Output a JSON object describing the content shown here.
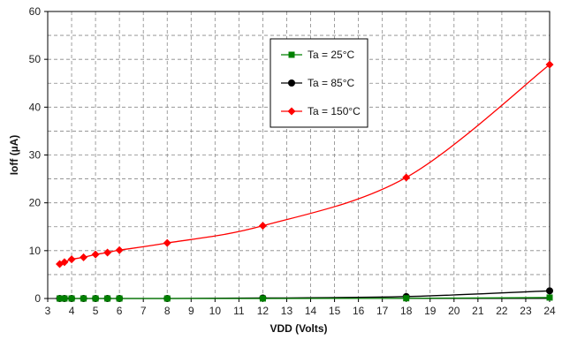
{
  "chart_data": {
    "type": "line",
    "xlabel": "VDD (Volts)",
    "ylabel": "Ioff (µA)",
    "xlim": [
      3,
      24
    ],
    "ylim": [
      0,
      60
    ],
    "x_ticks": [
      3,
      4,
      5,
      6,
      7,
      8,
      9,
      10,
      11,
      12,
      13,
      14,
      15,
      16,
      17,
      18,
      19,
      20,
      21,
      22,
      23,
      24
    ],
    "y_ticks": [
      0,
      10,
      20,
      30,
      40,
      50,
      60
    ],
    "grid": "dashed, major and minor",
    "legend_position": "top-center",
    "series": [
      {
        "name": "Ta = 25°C",
        "color": "#008000",
        "marker": "square",
        "x": [
          3.5,
          3.7,
          4.0,
          4.5,
          5.0,
          5.5,
          6.0,
          8.0,
          12.0,
          18.0,
          24.0
        ],
        "y": [
          0.0,
          0.0,
          0.0,
          0.0,
          0.0,
          0.0,
          0.0,
          0.0,
          0.0,
          0.05,
          0.2
        ]
      },
      {
        "name": "Ta = 85°C",
        "color": "#000000",
        "marker": "circle",
        "x": [
          3.5,
          3.7,
          4.0,
          4.5,
          5.0,
          5.5,
          6.0,
          8.0,
          12.0,
          18.0,
          24.0
        ],
        "y": [
          0.0,
          0.0,
          0.0,
          0.0,
          0.0,
          0.0,
          0.0,
          0.0,
          0.1,
          0.4,
          1.6
        ]
      },
      {
        "name": "Ta = 150°C",
        "color": "#ff0000",
        "marker": "diamond",
        "x": [
          3.5,
          3.7,
          4.0,
          4.5,
          5.0,
          5.5,
          6.0,
          8.0,
          12.0,
          18.0,
          24.0
        ],
        "y": [
          7.2,
          7.6,
          8.2,
          8.6,
          9.2,
          9.6,
          10.1,
          11.6,
          15.2,
          25.3,
          48.9
        ]
      }
    ]
  }
}
